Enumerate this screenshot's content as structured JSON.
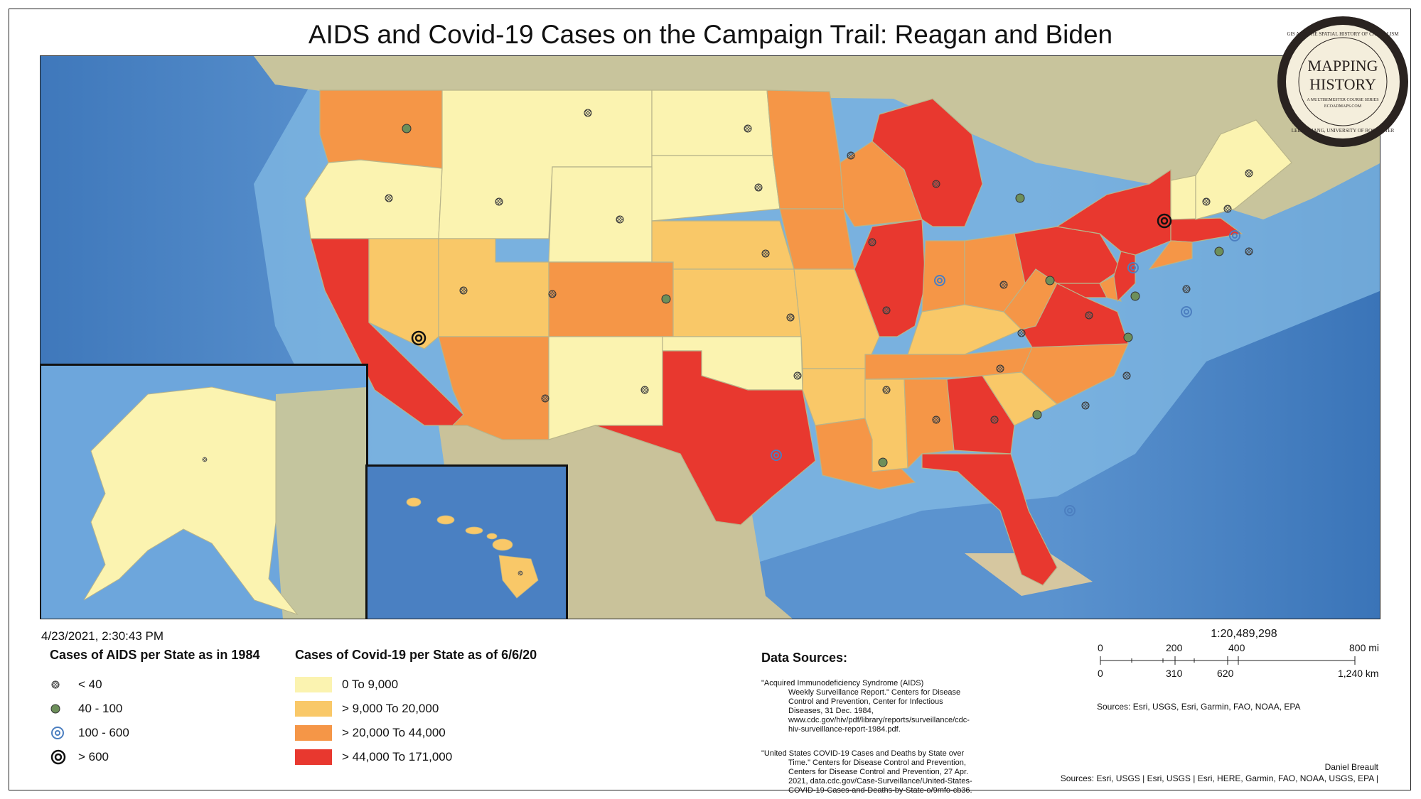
{
  "title": "AIDS and Covid-19 Cases on the Campaign Trail: Reagan and Biden",
  "timestamp": "4/23/2021, 2:30:43 PM",
  "seal": {
    "line1": "MAPPING",
    "line2": "HISTORY",
    "ring_text": "GIS AND THE SPATIAL HISTORY OF CAPITALISM",
    "ring_text_bottom": "LEILA ZHANG, UNIVERSITY OF ROCHESTER",
    "small1": "A MULTISEMESTER COURSE SERIES",
    "small2": "ECOADMAPS.COM"
  },
  "legend_aids": {
    "title": "Cases of AIDS  per State as in 1984",
    "items": [
      {
        "label": "< 40",
        "icon": "small-crosshatch-circle-icon"
      },
      {
        "label": "40 - 100",
        "icon": "green-circle-icon"
      },
      {
        "label": "100 - 600",
        "icon": "blue-double-ring-icon"
      },
      {
        "label": "> 600",
        "icon": "black-bullseye-icon"
      }
    ]
  },
  "legend_covid": {
    "title": "Cases of Covid-19  per State as of 6/6/20",
    "items": [
      {
        "label": "0 To 9,000",
        "color": "#fbf3b0"
      },
      {
        "label": "> 9,000 To 20,000",
        "color": "#f9c868"
      },
      {
        "label": "> 20,000 To 44,000",
        "color": "#f59647"
      },
      {
        "label": "> 44,000 To 171,000",
        "color": "#e8382f"
      }
    ]
  },
  "data_sources": {
    "heading": "Data Sources:",
    "cite1_first": "\"Acquired Immunodeficiency Syndrome (AIDS)",
    "cite1_rest": "Weekly Surveillance Report.\" Centers for Disease Control and Prevention, Center for Infectious Diseases, 31 Dec. 1984, www.cdc.gov/hiv/pdf/library/reports/surveillance/cdc-hiv-surveillance-report-1984.pdf.",
    "cite2_first": "\"United States COVID-19 Cases and Deaths by State over",
    "cite2_rest": "Time.\" Centers for Disease Control and Prevention, Centers for Disease Control and Prevention, 27 Apr. 2021, data.cdc.gov/Case-Surveillance/United-States-COVID-19-Cases-and-Deaths-by-State-o/9mfo-cb36."
  },
  "scale": {
    "ratio": "1:20,489,298",
    "mi_ticks": [
      "0",
      "200",
      "400",
      "800 mi"
    ],
    "km_ticks": [
      "0",
      "310",
      "620",
      "1,240 km"
    ]
  },
  "credits": {
    "sources_basemap": "Sources: Esri, USGS, Esri, Garmin, FAO, NOAA, EPA",
    "author": "Daniel Breault",
    "sources_full": "Sources: Esri, USGS | Esri, USGS | Esri, HERE, Garmin, FAO, NOAA, USGS, EPA |"
  },
  "colors": {
    "ocean": "#4f86c6",
    "shallow": "#8fbfe6",
    "land": "#c9c7a3",
    "low": "#fbf3b0",
    "mid_low": "#f9c868",
    "mid_high": "#f59647",
    "high": "#e8382f"
  }
}
